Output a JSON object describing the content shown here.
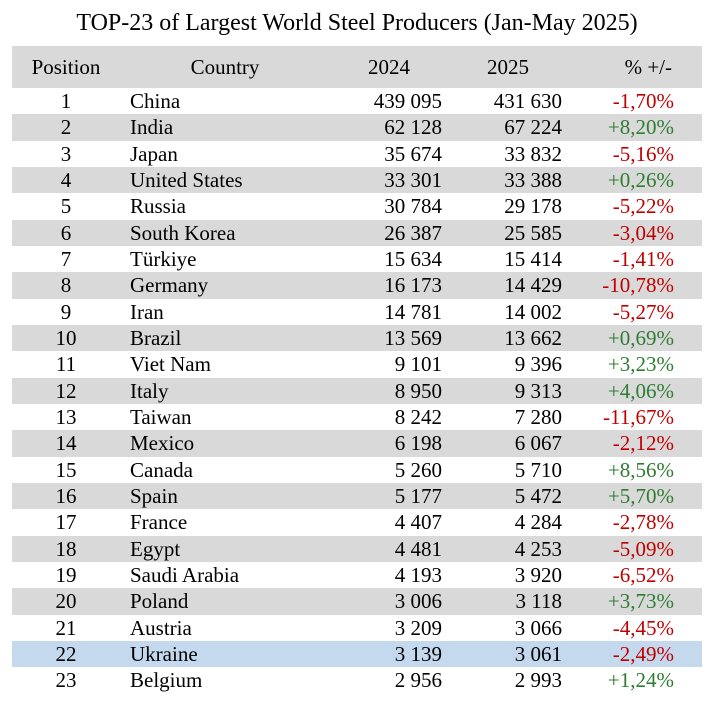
{
  "chart_data": {
    "type": "table",
    "title": "TOP-23 of Largest World Steel Producers (Jan-May 2025)",
    "columns": [
      "Position",
      "Country",
      "2024",
      "2025",
      "% +/-"
    ],
    "highlight_row": "Ukraine",
    "colors": {
      "header_bg": "#d9d9d9",
      "band_bg": "#d9d9d9",
      "highlight_bg": "#c5d9ee",
      "negative": "#c00000",
      "positive": "#2e7d32"
    },
    "rows": [
      {
        "position": "1",
        "country": "China",
        "y2024": "439 095",
        "y2025": "431 630",
        "change": "-1,70%"
      },
      {
        "position": "2",
        "country": "India",
        "y2024": "62 128",
        "y2025": "67 224",
        "change": "+8,20%"
      },
      {
        "position": "3",
        "country": "Japan",
        "y2024": "35 674",
        "y2025": "33 832",
        "change": "-5,16%"
      },
      {
        "position": "4",
        "country": "United States",
        "y2024": "33 301",
        "y2025": "33 388",
        "change": "+0,26%"
      },
      {
        "position": "5",
        "country": "Russia",
        "y2024": "30 784",
        "y2025": "29 178",
        "change": "-5,22%"
      },
      {
        "position": "6",
        "country": "South Korea",
        "y2024": "26 387",
        "y2025": "25 585",
        "change": "-3,04%"
      },
      {
        "position": "7",
        "country": "Türkiye",
        "y2024": "15 634",
        "y2025": "15 414",
        "change": "-1,41%"
      },
      {
        "position": "8",
        "country": "Germany",
        "y2024": "16 173",
        "y2025": "14 429",
        "change": "-10,78%"
      },
      {
        "position": "9",
        "country": "Iran",
        "y2024": "14 781",
        "y2025": "14 002",
        "change": "-5,27%"
      },
      {
        "position": "10",
        "country": "Brazil",
        "y2024": "13 569",
        "y2025": "13 662",
        "change": "+0,69%"
      },
      {
        "position": "11",
        "country": "Viet Nam",
        "y2024": "9 101",
        "y2025": "9 396",
        "change": "+3,23%"
      },
      {
        "position": "12",
        "country": "Italy",
        "y2024": "8 950",
        "y2025": "9 313",
        "change": "+4,06%"
      },
      {
        "position": "13",
        "country": "Taiwan",
        "y2024": "8 242",
        "y2025": "7 280",
        "change": "-11,67%"
      },
      {
        "position": "14",
        "country": "Mexico",
        "y2024": "6 198",
        "y2025": "6 067",
        "change": "-2,12%"
      },
      {
        "position": "15",
        "country": "Canada",
        "y2024": "5 260",
        "y2025": "5 710",
        "change": "+8,56%"
      },
      {
        "position": "16",
        "country": "Spain",
        "y2024": "5 177",
        "y2025": "5 472",
        "change": "+5,70%"
      },
      {
        "position": "17",
        "country": "France",
        "y2024": "4 407",
        "y2025": "4 284",
        "change": "-2,78%"
      },
      {
        "position": "18",
        "country": "Egypt",
        "y2024": "4 481",
        "y2025": "4 253",
        "change": "-5,09%"
      },
      {
        "position": "19",
        "country": "Saudi Arabia",
        "y2024": "4 193",
        "y2025": "3 920",
        "change": "-6,52%"
      },
      {
        "position": "20",
        "country": "Poland",
        "y2024": "3 006",
        "y2025": "3 118",
        "change": "+3,73%"
      },
      {
        "position": "21",
        "country": "Austria",
        "y2024": "3 209",
        "y2025": "3 066",
        "change": "-4,45%"
      },
      {
        "position": "22",
        "country": "Ukraine",
        "y2024": "3 139",
        "y2025": "3 061",
        "change": "-2,49%"
      },
      {
        "position": "23",
        "country": "Belgium",
        "y2024": "2 956",
        "y2025": "2 993",
        "change": "+1,24%"
      }
    ]
  }
}
